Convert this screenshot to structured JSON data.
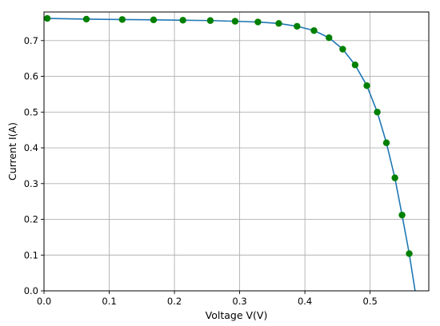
{
  "chart_data": {
    "type": "line",
    "title": "",
    "xlabel": "Voltage V(V)",
    "ylabel": "Current I(A)",
    "xlim": [
      0.0,
      0.59
    ],
    "ylim": [
      0.0,
      0.78
    ],
    "grid": true,
    "legend": "none",
    "x_ticks": [
      "0.0",
      "0.1",
      "0.2",
      "0.3",
      "0.4",
      "0.5"
    ],
    "y_ticks": [
      "0.0",
      "0.1",
      "0.2",
      "0.3",
      "0.4",
      "0.5",
      "0.6",
      "0.7"
    ],
    "line_color": "#1f77b4",
    "marker_color": "#008000",
    "series": [
      {
        "style": "line",
        "x": [
          0.005,
          0.065,
          0.12,
          0.168,
          0.213,
          0.255,
          0.293,
          0.328,
          0.36,
          0.388,
          0.414,
          0.437,
          0.458,
          0.477,
          0.495,
          0.511,
          0.525,
          0.538,
          0.549,
          0.56,
          0.569
        ],
        "y": [
          0.762,
          0.76,
          0.759,
          0.758,
          0.757,
          0.756,
          0.754,
          0.752,
          0.748,
          0.74,
          0.728,
          0.708,
          0.676,
          0.632,
          0.574,
          0.5,
          0.414,
          0.316,
          0.212,
          0.104,
          0.0
        ]
      },
      {
        "style": "markers",
        "x": [
          0.005,
          0.065,
          0.12,
          0.168,
          0.213,
          0.255,
          0.293,
          0.328,
          0.36,
          0.388,
          0.414,
          0.437,
          0.458,
          0.477,
          0.495,
          0.511,
          0.525,
          0.538,
          0.549,
          0.56
        ],
        "y": [
          0.762,
          0.76,
          0.759,
          0.758,
          0.757,
          0.756,
          0.754,
          0.752,
          0.748,
          0.74,
          0.728,
          0.708,
          0.676,
          0.632,
          0.574,
          0.5,
          0.414,
          0.316,
          0.212,
          0.104
        ]
      }
    ]
  }
}
